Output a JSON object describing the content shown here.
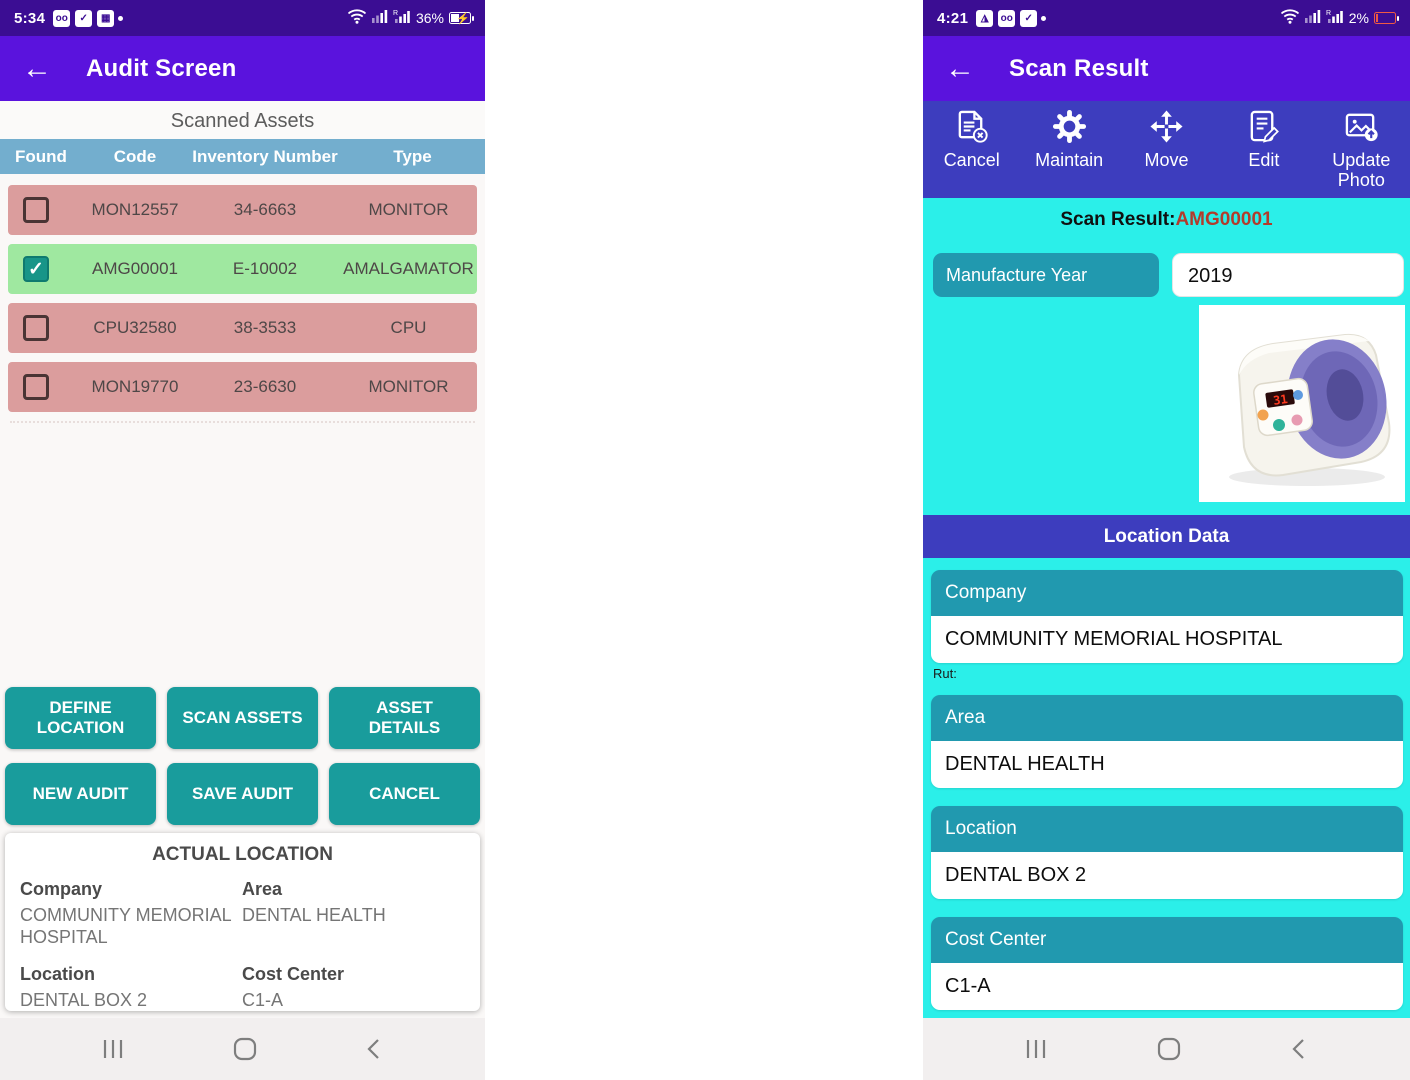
{
  "left_screen": {
    "status_bar": {
      "time": "5:34",
      "battery_pct": "36%",
      "icons": [
        "voicemail-badge",
        "check-task",
        "calendar"
      ]
    },
    "app_bar": {
      "title": "Audit Screen",
      "back_glyph": "←"
    },
    "table": {
      "caption": "Scanned Assets",
      "headers": [
        "Found",
        "Code",
        "Inventory Number",
        "Type"
      ],
      "rows": [
        {
          "found": false,
          "code": "MON12557",
          "inventory": "34-6663",
          "type": "MONITOR",
          "state": "missing"
        },
        {
          "found": true,
          "code": "AMG00001",
          "inventory": "E-10002",
          "type": "AMALGAMATOR",
          "state": "found"
        },
        {
          "found": false,
          "code": "CPU32580",
          "inventory": "38-3533",
          "type": "CPU",
          "state": "missing"
        },
        {
          "found": false,
          "code": "MON19770",
          "inventory": "23-6630",
          "type": "MONITOR",
          "state": "missing"
        }
      ]
    },
    "buttons": [
      "DEFINE LOCATION",
      "SCAN ASSETS",
      "ASSET DETAILS",
      "NEW AUDIT",
      "SAVE AUDIT",
      "CANCEL"
    ],
    "actual_location": {
      "title": "ACTUAL LOCATION",
      "fields": [
        {
          "label": "Company",
          "value": "COMMUNITY MEMORIAL HOSPITAL"
        },
        {
          "label": "Area",
          "value": "DENTAL HEALTH"
        },
        {
          "label": "Location",
          "value": "DENTAL BOX 2"
        },
        {
          "label": "Cost Center",
          "value": "C1-A"
        }
      ]
    },
    "checkmark_glyph": "✓"
  },
  "right_screen": {
    "status_bar": {
      "time": "4:21",
      "battery_pct": "2%",
      "icons": [
        "gallery",
        "voicemail-badge",
        "check-task"
      ]
    },
    "app_bar": {
      "title": "Scan Result",
      "back_glyph": "←"
    },
    "toolbar": [
      {
        "label": "Cancel",
        "icon": "cancel-document-icon"
      },
      {
        "label": "Maintain",
        "icon": "gear-icon"
      },
      {
        "label": "Move",
        "icon": "move-arrows-icon"
      },
      {
        "label": "Edit",
        "icon": "edit-document-icon"
      },
      {
        "label": "Update Photo",
        "icon": "update-photo-icon"
      }
    ],
    "scan_result_label": "Scan Result:",
    "scan_result_value": "AMG00001",
    "manufacture_year_label": "Manufacture Year",
    "manufacture_year_value": "2019",
    "photo_alt": "amalgamator-device-photo",
    "location_data": {
      "title": "Location Data",
      "sections": [
        {
          "label": "Company",
          "value": "COMMUNITY MEMORIAL HOSPITAL",
          "note": "Rut:"
        },
        {
          "label": "Area",
          "value": "DENTAL HEALTH"
        },
        {
          "label": "Location",
          "value": "DENTAL BOX 2"
        },
        {
          "label": "Cost Center",
          "value": "C1-A"
        }
      ]
    }
  },
  "colors": {
    "status_bar_purple": "#3B0D93",
    "app_bar_purple": "#5A13DD",
    "toolbar_indigo": "#3D3DBE",
    "cyan_background": "#2BEFE9",
    "teal_field_header": "#2199AF",
    "button_teal": "#199C9C",
    "table_header_blue": "#73AECE",
    "row_missing_pink": "#DB9D9D",
    "row_found_green": "#9FE8A0",
    "checkbox_checked_teal": "#189588",
    "scan_value_red": "#B23B2B",
    "battery_low_red": "#F05A43"
  }
}
